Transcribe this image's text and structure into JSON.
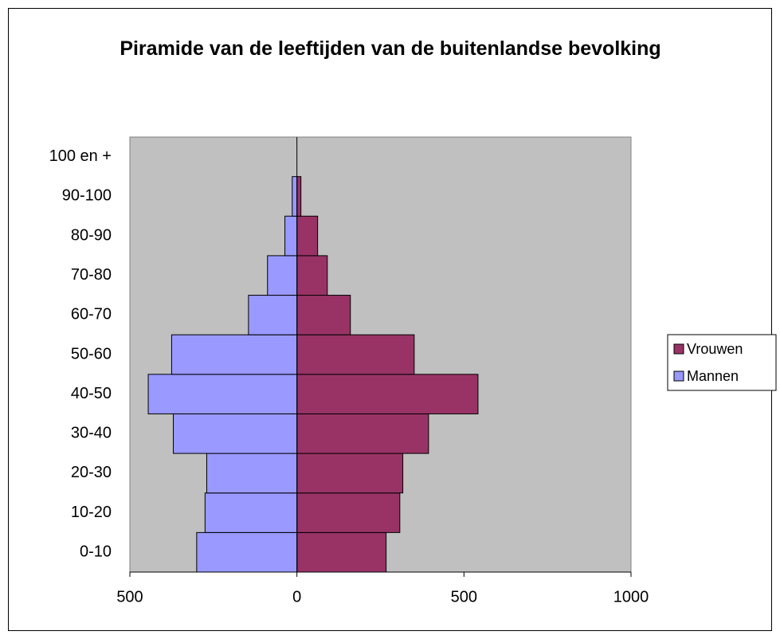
{
  "chart_data": {
    "type": "bar",
    "orientation": "horizontal",
    "title": "Piramide van de leeftijden van de buitenlandse bevolking",
    "categories": [
      "0-10",
      "10-20",
      "20-30",
      "30-40",
      "40-50",
      "50-60",
      "60-70",
      "70-80",
      "80-90",
      "90-100",
      "100 en +"
    ],
    "series": [
      {
        "name": "Vrouwen",
        "color": "#993366",
        "values": [
          267,
          308,
          317,
          394,
          542,
          351,
          160,
          91,
          62,
          12,
          0
        ]
      },
      {
        "name": "Mannen",
        "color": "#9999ff",
        "values": [
          -300,
          -275,
          -270,
          -370,
          -445,
          -375,
          -145,
          -88,
          -36,
          -14,
          0
        ]
      }
    ],
    "xlim": [
      -500,
      1000
    ],
    "xticks": [
      {
        "value": -500,
        "label": "500"
      },
      0,
      500,
      1000
    ],
    "plot_background": "#c0c0c0",
    "legend": "right"
  }
}
